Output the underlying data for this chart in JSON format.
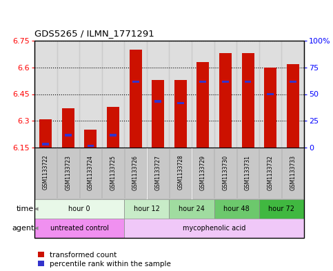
{
  "title": "GDS5265 / ILMN_1771291",
  "samples": [
    "GSM1133722",
    "GSM1133723",
    "GSM1133724",
    "GSM1133725",
    "GSM1133726",
    "GSM1133727",
    "GSM1133728",
    "GSM1133729",
    "GSM1133730",
    "GSM1133731",
    "GSM1133732",
    "GSM1133733"
  ],
  "bar_bottoms": [
    6.15,
    6.15,
    6.15,
    6.15,
    6.15,
    6.15,
    6.15,
    6.15,
    6.15,
    6.15,
    6.15,
    6.15
  ],
  "bar_tops": [
    6.31,
    6.37,
    6.25,
    6.38,
    6.7,
    6.53,
    6.53,
    6.63,
    6.68,
    6.68,
    6.6,
    6.62
  ],
  "percentile_values": [
    6.17,
    6.22,
    6.16,
    6.22,
    6.52,
    6.41,
    6.4,
    6.52,
    6.52,
    6.52,
    6.45,
    6.52
  ],
  "ylim_left": [
    6.15,
    6.75
  ],
  "ylim_right": [
    0,
    100
  ],
  "yticks_left": [
    6.15,
    6.3,
    6.45,
    6.6,
    6.75
  ],
  "ytick_labels_left": [
    "6.15",
    "6.3",
    "6.45",
    "6.6",
    "6.75"
  ],
  "yticks_right": [
    0,
    25,
    50,
    75,
    100
  ],
  "ytick_labels_right": [
    "0",
    "25",
    "50",
    "75",
    "100%"
  ],
  "bar_color": "#cc1100",
  "blue_color": "#3333cc",
  "col_bg_color": "#c8c8c8",
  "time_groups": [
    {
      "label": "hour 0",
      "start": 0,
      "end": 4,
      "color": "#e8f8e8"
    },
    {
      "label": "hour 12",
      "start": 4,
      "end": 6,
      "color": "#c8ecc8"
    },
    {
      "label": "hour 24",
      "start": 6,
      "end": 8,
      "color": "#a0dca0"
    },
    {
      "label": "hour 48",
      "start": 8,
      "end": 10,
      "color": "#6cc86c"
    },
    {
      "label": "hour 72",
      "start": 10,
      "end": 12,
      "color": "#40b840"
    }
  ],
  "agent_groups": [
    {
      "label": "untreated control",
      "start": 0,
      "end": 4,
      "color": "#f090f0"
    },
    {
      "label": "mycophenolic acid",
      "start": 4,
      "end": 12,
      "color": "#f0c8f8"
    }
  ],
  "legend_bar_label": "transformed count",
  "legend_blue_label": "percentile rank within the sample"
}
